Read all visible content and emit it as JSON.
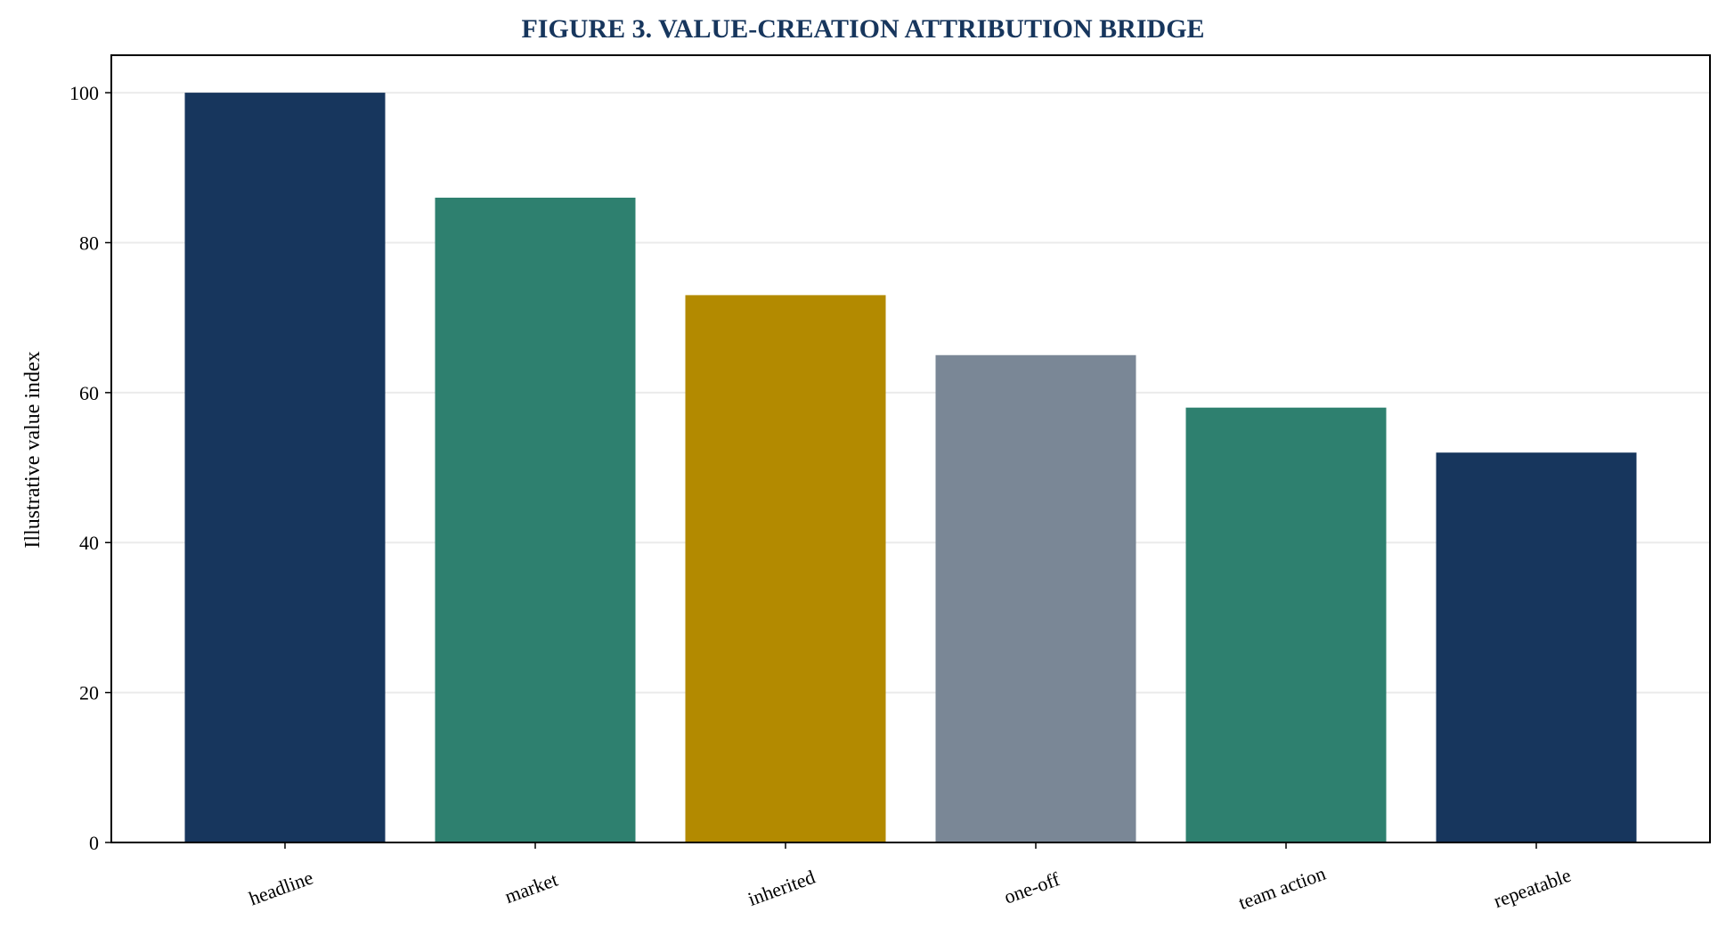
{
  "chart_data": {
    "type": "bar",
    "title": "FIGURE 3. VALUE-CREATION ATTRIBUTION BRIDGE",
    "xlabel": "",
    "ylabel": "Illustrative value index",
    "categories": [
      "headline",
      "market",
      "inherited",
      "one-off",
      "team action",
      "repeatable"
    ],
    "values": [
      100,
      86,
      73,
      65,
      58,
      52
    ],
    "bar_colors": [
      "#17365d",
      "#2e806f",
      "#b38a00",
      "#7a8796",
      "#2e806f",
      "#17365d"
    ],
    "ylim": [
      0,
      105
    ],
    "yticks": [
      0,
      20,
      40,
      60,
      80,
      100
    ],
    "grid": "horizontal",
    "legend": "none",
    "title_color": "#17365d",
    "grid_color": "#ebebeb"
  }
}
